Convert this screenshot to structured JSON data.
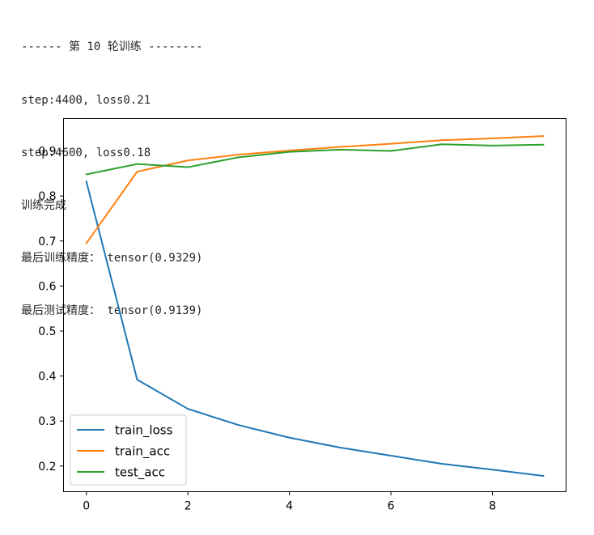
{
  "console": {
    "lines": [
      "------ 第 10 轮训练 --------",
      "step:4400, loss0.21",
      "step:4600, loss0.18",
      "训练完成",
      "最后训练精度： tensor(0.9329)",
      "最后测试精度： tensor(0.9139)"
    ]
  },
  "chart_data": {
    "type": "line",
    "x": [
      0,
      1,
      2,
      3,
      4,
      5,
      6,
      7,
      8,
      9
    ],
    "xticks": [
      0,
      2,
      4,
      6,
      8
    ],
    "xtick_labels": [
      "0",
      "2",
      "4",
      "6",
      "8"
    ],
    "yticks": [
      0.2,
      0.3,
      0.4,
      0.5,
      0.6,
      0.7,
      0.8,
      0.9
    ],
    "ytick_labels": [
      "0.2",
      "0.3",
      "0.4",
      "0.5",
      "0.6",
      "0.7",
      "0.8",
      "0.9"
    ],
    "xlim": [
      -0.45,
      9.45
    ],
    "ylim": [
      0.143,
      0.972
    ],
    "grid": false,
    "legend_position": "lower-left",
    "series": [
      {
        "name": "train_loss",
        "color": "#1f77b4",
        "values": [
          0.832,
          0.392,
          0.327,
          0.291,
          0.263,
          0.241,
          0.223,
          0.205,
          0.192,
          0.178
        ]
      },
      {
        "name": "train_acc",
        "color": "#ff7f0e",
        "values": [
          0.695,
          0.854,
          0.879,
          0.892,
          0.901,
          0.909,
          0.916,
          0.924,
          0.928,
          0.933
        ]
      },
      {
        "name": "test_acc",
        "color": "#2ca02c",
        "values": [
          0.848,
          0.871,
          0.864,
          0.886,
          0.898,
          0.903,
          0.9,
          0.915,
          0.912,
          0.914
        ]
      }
    ]
  }
}
